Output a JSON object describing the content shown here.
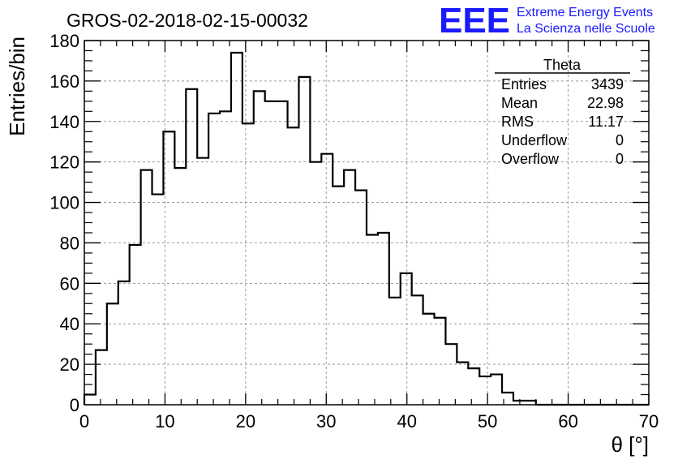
{
  "chart_data": {
    "type": "bar",
    "style": "step-histogram",
    "title": "GROS-02-2018-02-15-00032",
    "xlabel": "θ [°]",
    "ylabel": "Entries/bin",
    "xlim": [
      0,
      70
    ],
    "ylim": [
      0,
      180
    ],
    "grid": true,
    "bin_width": 1.4,
    "x_ticks": [
      "0",
      "10",
      "20",
      "30",
      "40",
      "50",
      "60",
      "70"
    ],
    "y_ticks": [
      "0",
      "20",
      "40",
      "60",
      "80",
      "100",
      "120",
      "140",
      "160",
      "180"
    ],
    "bin_edges": [
      0,
      1.4,
      2.8,
      4.2,
      5.6,
      7.0,
      8.4,
      9.8,
      11.2,
      12.6,
      14.0,
      15.4,
      16.8,
      18.2,
      19.6,
      21.0,
      22.4,
      23.8,
      25.2,
      26.6,
      28.0,
      29.4,
      30.8,
      32.2,
      33.6,
      35.0,
      36.4,
      37.8,
      39.2,
      40.6,
      42.0,
      43.4,
      44.8,
      46.2,
      47.6,
      49.0,
      50.4,
      51.8,
      53.2,
      54.6,
      56.0,
      57.4,
      58.8,
      60.2,
      61.6,
      63.0,
      64.4,
      65.8,
      67.2,
      68.6,
      70.0
    ],
    "values": [
      5,
      27,
      50,
      61,
      79,
      116,
      104,
      135,
      117,
      156,
      122,
      144,
      145,
      174,
      139,
      155,
      150,
      150,
      137,
      162,
      120,
      124,
      108,
      116,
      106,
      84,
      85,
      53,
      65,
      54,
      45,
      43,
      30,
      21,
      18,
      14,
      15,
      6,
      2,
      2,
      0,
      0,
      0,
      0,
      0,
      0,
      0,
      0,
      0,
      0
    ],
    "legend_position": "top-right"
  },
  "stats_box": {
    "title": "Theta",
    "rows": [
      {
        "label": "Entries",
        "value": "3439"
      },
      {
        "label": "Mean",
        "value": "22.98"
      },
      {
        "label": "RMS",
        "value": "11.17"
      },
      {
        "label": "Underflow",
        "value": "0"
      },
      {
        "label": "Overflow",
        "value": "0"
      }
    ]
  },
  "logo": {
    "mark": "EEE",
    "line1": "Extreme Energy Events",
    "line2": "La Scienza nelle Scuole",
    "color": "#1a1aff"
  },
  "colors": {
    "histogram": "#000000",
    "grid": "#9a9a9a",
    "axis": "#000000"
  }
}
